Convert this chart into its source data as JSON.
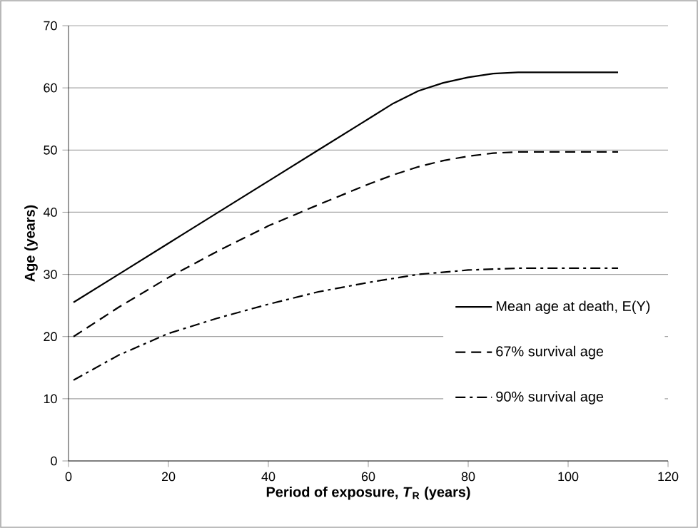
{
  "chart_data": {
    "type": "line",
    "xlabel": "Period of exposure, *T*$_{R}$ (years)",
    "ylabel": "Age (years)",
    "xlim": [
      0,
      120
    ],
    "xticks": [
      0,
      20,
      40,
      60,
      80,
      100,
      120
    ],
    "ylim": [
      0,
      70
    ],
    "yticks": [
      0,
      10,
      20,
      30,
      40,
      50,
      60,
      70
    ],
    "grid": "y",
    "legend": "right",
    "marker": "none",
    "series": [
      {
        "name": "Mean age at death, E(Y)",
        "color": "#000000",
        "line_style": "solid",
        "x": [
          1,
          10,
          20,
          30,
          40,
          50,
          60,
          65,
          70,
          75,
          80,
          85,
          90,
          110
        ],
        "values": [
          25.5,
          30,
          35,
          40,
          45,
          50,
          55,
          57.5,
          59.5,
          60.8,
          61.7,
          62.3,
          62.5,
          62.5
        ]
      },
      {
        "name": "67% survival age",
        "color": "#000000",
        "line_style": "dashed",
        "x": [
          1,
          10,
          20,
          30,
          40,
          50,
          60,
          65,
          70,
          75,
          80,
          85,
          90,
          110
        ],
        "values": [
          20,
          24.7,
          29.5,
          33.8,
          37.8,
          41.2,
          44.5,
          46,
          47.3,
          48.3,
          49,
          49.5,
          49.7,
          49.7
        ]
      },
      {
        "name": "90% survival age",
        "color": "#000000",
        "line_style": "dashdot",
        "x": [
          1,
          10,
          20,
          30,
          40,
          50,
          60,
          70,
          80,
          90,
          110
        ],
        "values": [
          13,
          17,
          20.5,
          23,
          25.2,
          27.2,
          28.7,
          30,
          30.7,
          31,
          31
        ]
      }
    ]
  }
}
